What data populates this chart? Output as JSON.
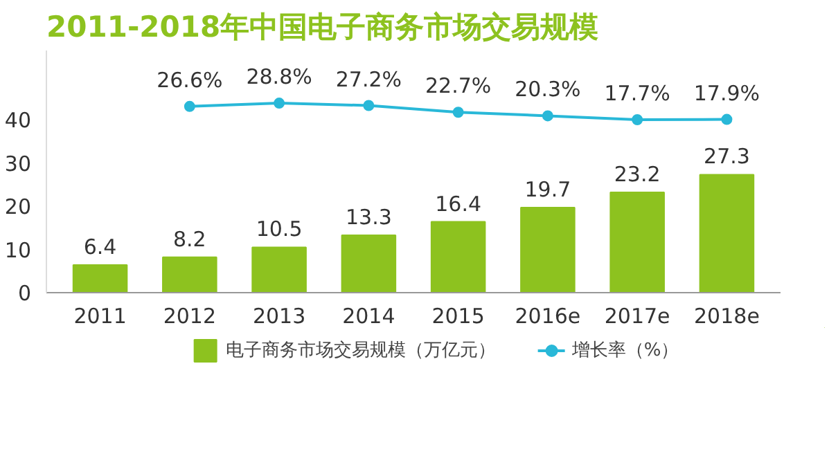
{
  "chart_data": {
    "type": "bar",
    "title": "2011-2018年中国电子商务市场交易规模",
    "categories": [
      "2011",
      "2012",
      "2013",
      "2014",
      "2015",
      "2016e",
      "2017e",
      "2018e"
    ],
    "series": [
      {
        "name": "电子商务市场交易规模（万亿元）",
        "color": "#8dc21f",
        "values": [
          6.4,
          8.2,
          10.5,
          13.3,
          16.4,
          19.7,
          23.2,
          27.3
        ],
        "value_labels": [
          "6.4",
          "8.2",
          "10.5",
          "13.3",
          "16.4",
          "19.7",
          "23.2",
          "27.3"
        ]
      },
      {
        "name": "增长率（%）",
        "type": "line",
        "axis": "y2",
        "color": "#29b8d8",
        "marker": "circle",
        "values": [
          null,
          26.6,
          28.8,
          27.2,
          22.7,
          20.3,
          17.7,
          17.9
        ],
        "value_labels": [
          null,
          "26.6%",
          "28.8%",
          "27.2%",
          "22.7%",
          "20.3%",
          "17.7%",
          "17.9%"
        ]
      }
    ],
    "ylim": [
      0,
      56
    ],
    "yticks": [
      0,
      10,
      20,
      30,
      40
    ],
    "y2lim": [
      -98,
      64
    ],
    "grid": false,
    "legend": "bottom"
  }
}
